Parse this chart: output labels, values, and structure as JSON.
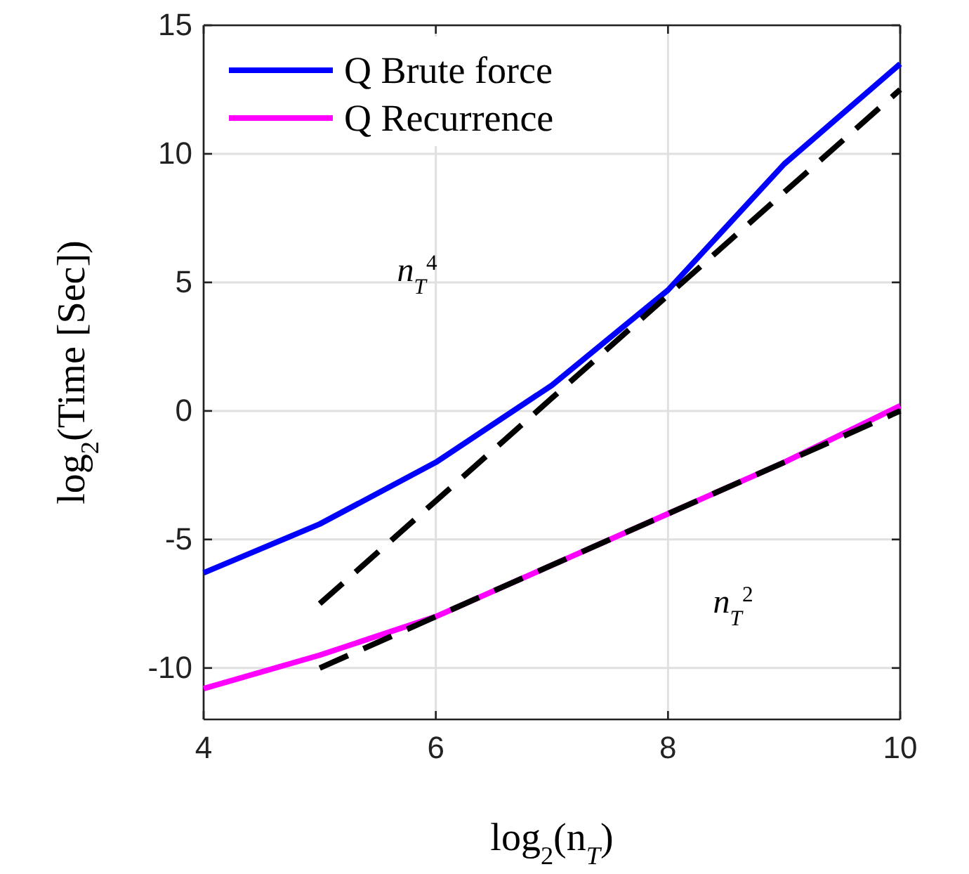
{
  "chart_data": {
    "type": "line",
    "xlabel": "log$_{2}$(n$_{T}$)",
    "ylabel": "log$_{2}$(Time [Sec])",
    "xlim": [
      4,
      10
    ],
    "xticks": [
      4,
      6,
      8,
      10
    ],
    "ylim": [
      -12,
      15
    ],
    "yticks": [
      -10,
      -5,
      0,
      5,
      10,
      15
    ],
    "grid": true,
    "legend": "top left",
    "series": [
      {
        "name": "Q Brute force",
        "color": "#0000ff",
        "x": [
          4,
          5,
          6,
          7,
          8,
          9,
          10
        ],
        "values": [
          -6.3,
          -4.4,
          -2.0,
          1.0,
          4.7,
          9.6,
          13.5
        ],
        "line_style": "solid"
      },
      {
        "name": "Q Recurrence",
        "color": "#ff00ff",
        "x": [
          4,
          5,
          6,
          7,
          8,
          9,
          10
        ],
        "values": [
          -10.8,
          -9.5,
          -8.0,
          -6.0,
          -4.0,
          -2.0,
          0.2
        ],
        "line_style": "solid"
      },
      {
        "color": "#000000",
        "x": [
          5,
          6,
          7,
          8,
          9,
          10
        ],
        "values": [
          -7.5,
          -3.5,
          0.5,
          4.5,
          8.5,
          12.5
        ],
        "line_style": "dashed"
      },
      {
        "color": "#000000",
        "x": [
          5,
          6,
          7,
          8,
          9,
          10
        ],
        "values": [
          -10,
          -8,
          -6,
          -4,
          -2,
          0
        ],
        "line_style": "dashed"
      }
    ],
    "annotations": [
      "n$_{T}$$^{4}$",
      "n$_{T}$$^{2}$"
    ]
  }
}
